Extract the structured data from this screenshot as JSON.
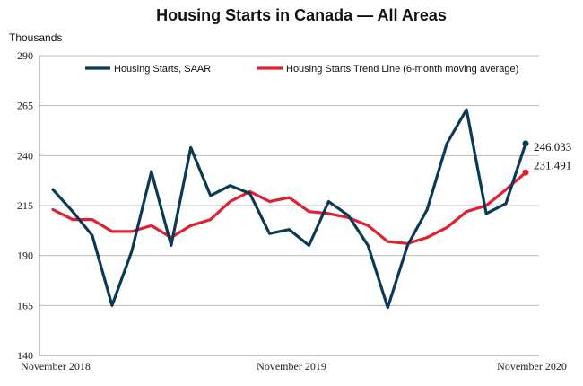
{
  "chart_data": {
    "type": "line",
    "title": "Housing Starts in Canada — All Areas",
    "ylabel": "Thousands",
    "xlabel": "",
    "ylim": [
      140,
      290
    ],
    "y_ticks": [
      140,
      165,
      190,
      215,
      240,
      265,
      290
    ],
    "x_tick_labels": [
      "November 2018",
      "November 2019",
      "November 2020"
    ],
    "grid": true,
    "legend_position": "top",
    "series": [
      {
        "name": "Housing Starts, SAAR",
        "color": "#0b3a57",
        "values": [
          223,
          212,
          200,
          165,
          192,
          232,
          195,
          244,
          220,
          225,
          221,
          201,
          203,
          195,
          217,
          210,
          195,
          164,
          195,
          213,
          246,
          263,
          211,
          216,
          246.033
        ],
        "end_label": "246.033"
      },
      {
        "name": "Housing Starts Trend Line (6-month moving average)",
        "color": "#e02030",
        "values": [
          213,
          208,
          208,
          202,
          202,
          205,
          199,
          205,
          208,
          217,
          222,
          217,
          219,
          212,
          211,
          209,
          205,
          197,
          196,
          199,
          204,
          212,
          215,
          223,
          231.491
        ],
        "end_label": "231.491"
      }
    ]
  }
}
